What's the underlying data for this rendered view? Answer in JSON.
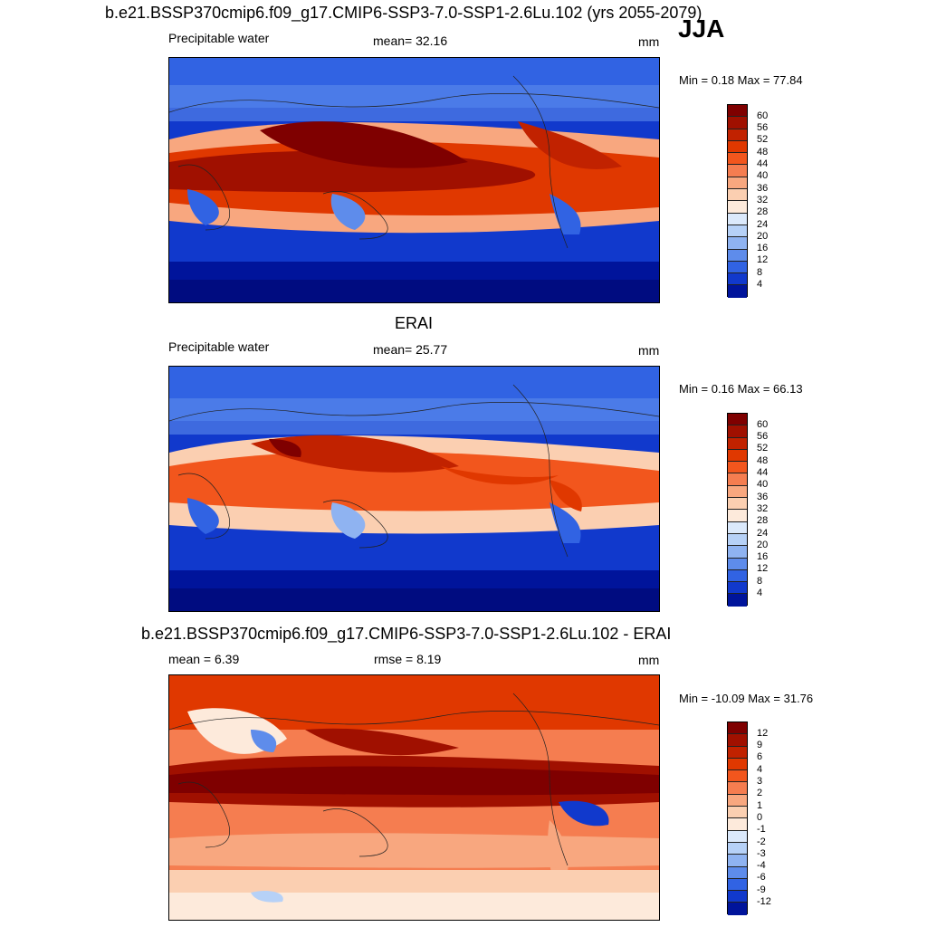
{
  "header": {
    "top_title": "b.e21.BSSP370cmip6.f09_g17.CMIP6-SSP3-7.0-SSP1-2.6Lu.102 (yrs 2055-2079)",
    "season": "JJA"
  },
  "panels": [
    {
      "title": "",
      "left_label": "Precipitable water",
      "center_label": "mean=  32.16",
      "units": "mm",
      "minmax": "Min =   0.18 Max =  77.84",
      "colorbar_labels": [
        "60",
        "56",
        "52",
        "48",
        "44",
        "40",
        "36",
        "32",
        "28",
        "24",
        "20",
        "16",
        "12",
        "8",
        "4"
      ],
      "colorbar_colors": [
        "#7f0000",
        "#a01000",
        "#c12200",
        "#e03800",
        "#f2561d",
        "#f57d50",
        "#f8a77f",
        "#fbcfb1",
        "#fdeadb",
        "#dbe9fb",
        "#b6d1f7",
        "#8fb3f1",
        "#5e8ceb",
        "#3163e3",
        "#1139cc",
        "#00149b"
      ]
    },
    {
      "title": "ERAI",
      "left_label": "Precipitable water",
      "center_label": "mean=  25.77",
      "units": "mm",
      "minmax": "Min =   0.16 Max =  66.13",
      "colorbar_labels": [
        "60",
        "56",
        "52",
        "48",
        "44",
        "40",
        "36",
        "32",
        "28",
        "24",
        "20",
        "16",
        "12",
        "8",
        "4"
      ],
      "colorbar_colors": [
        "#7f0000",
        "#a01000",
        "#c12200",
        "#e03800",
        "#f2561d",
        "#f57d50",
        "#f8a77f",
        "#fbcfb1",
        "#fdeadb",
        "#dbe9fb",
        "#b6d1f7",
        "#8fb3f1",
        "#5e8ceb",
        "#3163e3",
        "#1139cc",
        "#00149b"
      ]
    },
    {
      "title": "b.e21.BSSP370cmip6.f09_g17.CMIP6-SSP3-7.0-SSP1-2.6Lu.102 - ERAI",
      "left_label": "mean =   6.39",
      "center_label": "rmse =   8.19",
      "units": "mm",
      "minmax": "Min = -10.09 Max =  31.76",
      "colorbar_labels": [
        "12",
        "9",
        "6",
        "4",
        "3",
        "2",
        "1",
        "0",
        "-1",
        "-2",
        "-3",
        "-4",
        "-6",
        "-9",
        "-12"
      ],
      "colorbar_colors": [
        "#7f0000",
        "#a01000",
        "#c12200",
        "#e03800",
        "#f2561d",
        "#f57d50",
        "#f8a77f",
        "#fbcfb1",
        "#fdeadb",
        "#dbe9fb",
        "#b6d1f7",
        "#8fb3f1",
        "#5e8ceb",
        "#3163e3",
        "#1139cc",
        "#00149b"
      ]
    }
  ]
}
